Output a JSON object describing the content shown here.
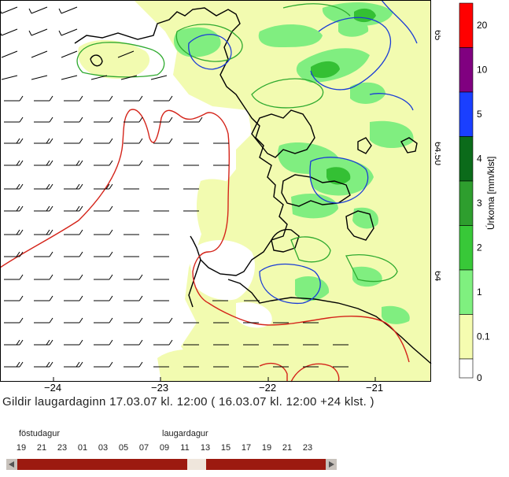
{
  "map": {
    "longitude_ticks": [
      "−24",
      "−23",
      "−22",
      "−21"
    ],
    "latitude_ticks": [
      "65",
      "64.50",
      "64"
    ]
  },
  "legend": {
    "axis_label": "Úrkoma [mm/klst]",
    "levels": [
      {
        "label": "20",
        "color": "#ff0000"
      },
      {
        "label": "10",
        "color": "#800080"
      },
      {
        "label": "5",
        "color": "#1a3fff"
      },
      {
        "label": "4",
        "color": "#0b6b1a"
      },
      {
        "label": "3",
        "color": "#2e9e2e"
      },
      {
        "label": "2",
        "color": "#38c838"
      },
      {
        "label": "1",
        "color": "#7ff07f"
      },
      {
        "label": "0.1",
        "color": "#f5fcb0"
      },
      {
        "label": "0",
        "color": "#ffffff"
      }
    ]
  },
  "caption": "Gildir laugardaginn 17.03.07 kl. 12:00 ( 16.03.07 kl. 12:00 +24 klst. )",
  "timeline": {
    "day1": "föstudagur",
    "day2": "laugardagur",
    "hours": [
      "19",
      "21",
      "23",
      "01",
      "03",
      "05",
      "07",
      "09",
      "11",
      "13",
      "15",
      "17",
      "19",
      "21",
      "23"
    ],
    "selected_hour": "11"
  }
}
